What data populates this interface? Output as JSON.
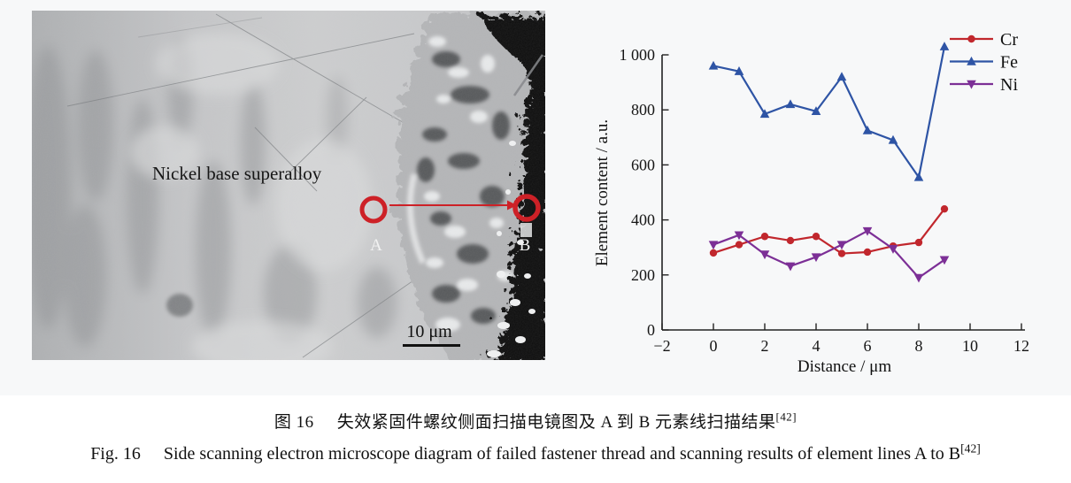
{
  "figure": {
    "sem": {
      "region_label": "Nickel base superalloy",
      "point_a_label": "A",
      "point_b_label": "B",
      "scale_bar_label": "10 μm",
      "annotation_color": "#cd2127"
    },
    "captions": {
      "zh_label": "图 16",
      "zh_body": "失效紧固件螺纹侧面扫描电镜图及 A 到 B 元素线扫描结果",
      "zh_ref": "[42]",
      "en_label": "Fig. 16",
      "en_body": "Side scanning electron microscope diagram of failed fastener thread and scanning results of element lines A to B",
      "en_ref": "[42]"
    }
  },
  "chart_data": {
    "type": "line",
    "title": "",
    "xlabel": "Distance / μm",
    "ylabel": "Element content / a.u.",
    "xlim": [
      -2,
      12
    ],
    "ylim": [
      0,
      1000
    ],
    "grid": false,
    "legend_position": "top-right",
    "x": [
      0,
      1,
      2,
      3,
      4,
      5,
      6,
      7,
      8,
      9
    ],
    "series": [
      {
        "name": "Cr",
        "color": "#c1272d",
        "marker": "circle",
        "values": [
          280,
          310,
          340,
          325,
          340,
          278,
          283,
          305,
          318,
          440
        ]
      },
      {
        "name": "Fe",
        "color": "#2e54a5",
        "marker": "triangle-up",
        "values": [
          960,
          940,
          785,
          820,
          795,
          920,
          725,
          690,
          555,
          1030
        ]
      },
      {
        "name": "Ni",
        "color": "#7c2f96",
        "marker": "triangle-down",
        "values": [
          310,
          345,
          275,
          232,
          265,
          310,
          360,
          295,
          190,
          255
        ]
      }
    ],
    "xtick_values": [
      -2,
      0,
      2,
      4,
      6,
      8,
      10,
      12
    ],
    "xtick_labels": [
      "−2",
      "0",
      "2",
      "4",
      "6",
      "8",
      "10",
      "12"
    ],
    "ytick_values": [
      0,
      200,
      400,
      600,
      800,
      1000
    ],
    "ytick_labels": [
      "0",
      "200",
      "400",
      "600",
      "800",
      "1 000"
    ]
  }
}
